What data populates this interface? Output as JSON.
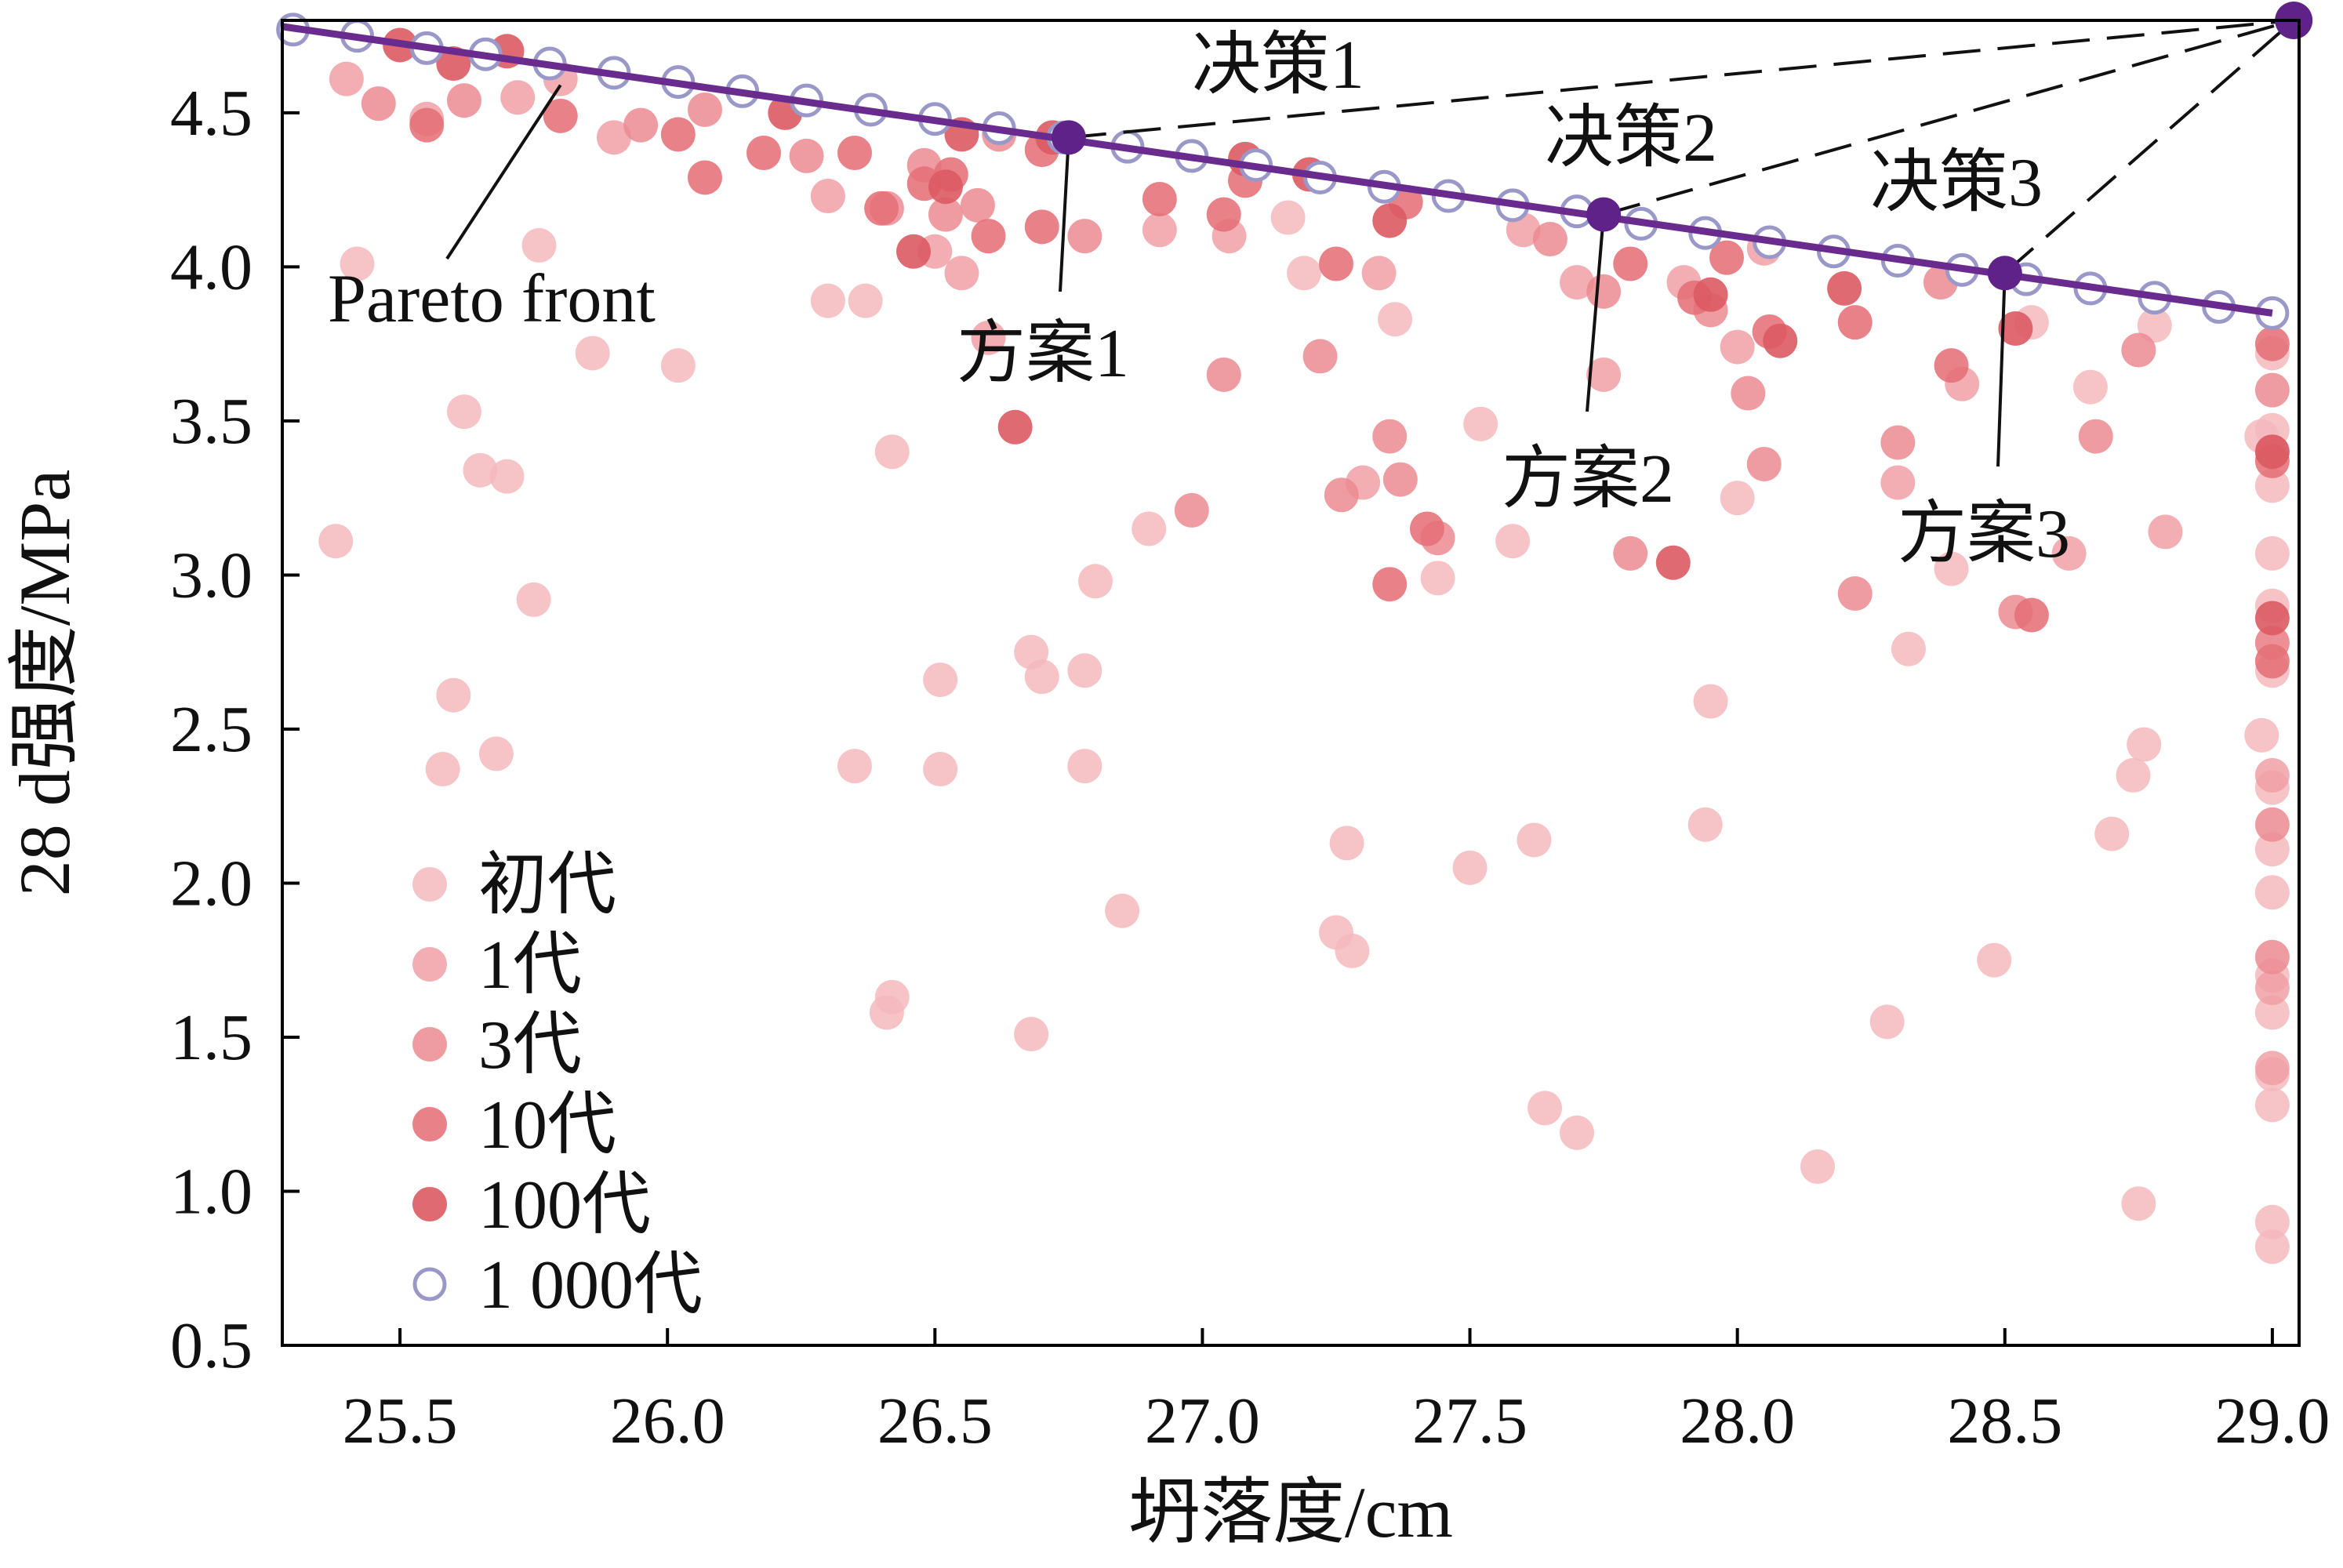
{
  "chart_data": {
    "type": "scatter",
    "xlabel": "坍落度/cm",
    "ylabel": "28 d强度/MPa",
    "xlim": [
      25.28,
      29.05
    ],
    "ylim": [
      0.5,
      4.8
    ],
    "xticks": [
      "25.5",
      "26.0",
      "26.5",
      "27.0",
      "27.5",
      "28.0",
      "28.5",
      "29.0"
    ],
    "yticks": [
      "0.5",
      "1.0",
      "1.5",
      "2.0",
      "2.5",
      "3.0",
      "3.5",
      "4.0",
      "4.5"
    ],
    "grid": false,
    "legend_position": "bottom-left",
    "pareto_label": "Pareto front",
    "pareto_line": [
      [
        25.28,
        4.78
      ],
      [
        29.0,
        3.85
      ]
    ],
    "ideal_point": {
      "x": 29.04,
      "y": 4.8
    },
    "solutions": [
      {
        "label": "方案1",
        "x": 26.75,
        "y": 4.42
      },
      {
        "label": "方案2",
        "x": 27.75,
        "y": 4.17
      },
      {
        "label": "方案3",
        "x": 28.5,
        "y": 3.98
      }
    ],
    "decisions": [
      "决策1",
      "决策2",
      "决策3"
    ],
    "colors": {
      "pareto_line": "#6a2b8e",
      "pareto_marker_stroke": "#9a98c8",
      "solution_point": "#5e2288",
      "decision_line": "#111111"
    },
    "series": [
      {
        "name": "初代",
        "color": "#f5b9bd",
        "opacity": 0.85,
        "points": [
          [
            25.38,
            3.11
          ],
          [
            25.42,
            4.01
          ],
          [
            25.6,
            2.61
          ],
          [
            25.62,
            3.53
          ],
          [
            25.65,
            3.34
          ],
          [
            25.58,
            2.37
          ],
          [
            25.68,
            2.42
          ],
          [
            25.7,
            3.32
          ],
          [
            25.75,
            2.92
          ],
          [
            25.76,
            4.07
          ],
          [
            25.86,
            3.72
          ],
          [
            26.02,
            3.68
          ],
          [
            26.3,
            3.89
          ],
          [
            26.37,
            3.89
          ],
          [
            26.35,
            2.38
          ],
          [
            26.42,
            3.4
          ],
          [
            26.42,
            1.63
          ],
          [
            26.41,
            1.58
          ],
          [
            26.51,
            2.66
          ],
          [
            26.51,
            2.37
          ],
          [
            26.68,
            2.75
          ],
          [
            26.7,
            2.67
          ],
          [
            26.68,
            1.51
          ],
          [
            26.78,
            2.69
          ],
          [
            26.78,
            2.38
          ],
          [
            26.8,
            2.98
          ],
          [
            26.85,
            1.91
          ],
          [
            26.9,
            3.15
          ],
          [
            27.16,
            4.16
          ],
          [
            27.19,
            3.98
          ],
          [
            27.27,
            2.13
          ],
          [
            27.25,
            1.84
          ],
          [
            27.28,
            1.78
          ],
          [
            27.36,
            3.83
          ],
          [
            27.44,
            2.99
          ],
          [
            27.5,
            2.05
          ],
          [
            27.52,
            3.49
          ],
          [
            27.58,
            3.11
          ],
          [
            27.62,
            2.14
          ],
          [
            27.64,
            1.27
          ],
          [
            27.7,
            1.19
          ],
          [
            27.95,
            2.59
          ],
          [
            27.94,
            2.19
          ],
          [
            28.0,
            3.25
          ],
          [
            28.15,
            1.08
          ],
          [
            28.28,
            1.55
          ],
          [
            28.32,
            2.76
          ],
          [
            28.4,
            3.02
          ],
          [
            28.48,
            1.75
          ],
          [
            28.55,
            3.82
          ],
          [
            28.66,
            3.61
          ],
          [
            28.7,
            2.16
          ],
          [
            28.74,
            2.35
          ],
          [
            28.76,
            2.45
          ],
          [
            28.78,
            3.81
          ],
          [
            28.75,
            0.96
          ],
          [
            28.98,
            3.45
          ],
          [
            28.98,
            2.48
          ],
          [
            29.0,
            0.9
          ],
          [
            29.0,
            0.82
          ],
          [
            29.0,
            1.28
          ],
          [
            29.0,
            1.38
          ],
          [
            29.0,
            1.58
          ],
          [
            29.0,
            1.7
          ],
          [
            29.0,
            1.97
          ],
          [
            29.0,
            2.11
          ],
          [
            29.0,
            2.31
          ],
          [
            29.0,
            2.69
          ],
          [
            29.0,
            2.9
          ],
          [
            29.0,
            3.07
          ],
          [
            29.0,
            3.29
          ],
          [
            29.0,
            3.47
          ],
          [
            29.0,
            3.72
          ]
        ]
      },
      {
        "name": "1代",
        "color": "#f0a0a6",
        "opacity": 0.85,
        "points": [
          [
            25.4,
            4.61
          ],
          [
            25.55,
            4.48
          ],
          [
            25.72,
            4.55
          ],
          [
            25.8,
            4.61
          ],
          [
            25.9,
            4.42
          ],
          [
            26.3,
            4.23
          ],
          [
            26.5,
            4.05
          ],
          [
            26.55,
            3.98
          ],
          [
            26.6,
            3.77
          ],
          [
            26.92,
            4.12
          ],
          [
            27.05,
            4.1
          ],
          [
            27.3,
            3.3
          ],
          [
            27.33,
            3.98
          ],
          [
            27.6,
            4.12
          ],
          [
            27.7,
            3.95
          ],
          [
            27.75,
            3.65
          ],
          [
            27.9,
            3.95
          ],
          [
            28.0,
            3.74
          ],
          [
            28.05,
            4.06
          ],
          [
            28.3,
            3.3
          ],
          [
            28.42,
            3.62
          ],
          [
            28.62,
            3.07
          ],
          [
            28.8,
            3.14
          ],
          [
            29.0,
            1.4
          ],
          [
            29.0,
            1.66
          ],
          [
            29.0,
            2.35
          ],
          [
            29.0,
            2.78
          ],
          [
            29.0,
            3.4
          ]
        ]
      },
      {
        "name": "3代",
        "color": "#eb8b91",
        "opacity": 0.85,
        "points": [
          [
            25.46,
            4.53
          ],
          [
            25.62,
            4.54
          ],
          [
            25.95,
            4.46
          ],
          [
            26.07,
            4.51
          ],
          [
            26.26,
            4.36
          ],
          [
            26.41,
            4.19
          ],
          [
            26.48,
            4.33
          ],
          [
            26.52,
            4.17
          ],
          [
            26.58,
            4.2
          ],
          [
            26.62,
            4.43
          ],
          [
            26.78,
            4.1
          ],
          [
            26.98,
            3.21
          ],
          [
            27.04,
            3.65
          ],
          [
            27.22,
            3.71
          ],
          [
            27.26,
            3.26
          ],
          [
            27.35,
            3.45
          ],
          [
            27.37,
            3.31
          ],
          [
            27.44,
            3.12
          ],
          [
            27.65,
            4.09
          ],
          [
            27.75,
            3.92
          ],
          [
            27.8,
            3.07
          ],
          [
            27.95,
            3.86
          ],
          [
            28.02,
            3.59
          ],
          [
            28.05,
            3.36
          ],
          [
            28.22,
            2.94
          ],
          [
            28.3,
            3.43
          ],
          [
            28.38,
            3.95
          ],
          [
            28.52,
            2.88
          ],
          [
            28.67,
            3.45
          ],
          [
            28.75,
            3.73
          ],
          [
            29.0,
            1.76
          ],
          [
            29.0,
            2.19
          ],
          [
            29.0,
            2.78
          ],
          [
            29.0,
            3.6
          ]
        ]
      },
      {
        "name": "10代",
        "color": "#e56f77",
        "opacity": 0.88,
        "points": [
          [
            25.55,
            4.46
          ],
          [
            25.8,
            4.49
          ],
          [
            26.02,
            4.43
          ],
          [
            26.07,
            4.29
          ],
          [
            26.18,
            4.37
          ],
          [
            26.35,
            4.37
          ],
          [
            26.4,
            4.19
          ],
          [
            26.48,
            4.27
          ],
          [
            26.53,
            4.3
          ],
          [
            26.6,
            4.1
          ],
          [
            26.7,
            4.38
          ],
          [
            26.7,
            4.13
          ],
          [
            26.92,
            4.22
          ],
          [
            27.04,
            4.17
          ],
          [
            27.08,
            4.28
          ],
          [
            27.25,
            4.01
          ],
          [
            27.35,
            2.97
          ],
          [
            27.38,
            4.21
          ],
          [
            27.42,
            3.15
          ],
          [
            27.8,
            4.01
          ],
          [
            27.92,
            3.9
          ],
          [
            27.98,
            4.03
          ],
          [
            28.06,
            3.79
          ],
          [
            28.22,
            3.82
          ],
          [
            28.4,
            3.68
          ],
          [
            28.55,
            2.87
          ],
          [
            29.0,
            2.72
          ],
          [
            29.0,
            3.37
          ],
          [
            29.0,
            3.75
          ]
        ]
      },
      {
        "name": "100代",
        "color": "#dc5a63",
        "opacity": 0.9,
        "points": [
          [
            25.5,
            4.72
          ],
          [
            25.6,
            4.66
          ],
          [
            25.7,
            4.7
          ],
          [
            26.22,
            4.5
          ],
          [
            26.46,
            4.05
          ],
          [
            26.52,
            4.26
          ],
          [
            26.55,
            4.43
          ],
          [
            26.65,
            3.48
          ],
          [
            26.72,
            4.42
          ],
          [
            27.08,
            4.35
          ],
          [
            27.2,
            4.3
          ],
          [
            27.35,
            4.15
          ],
          [
            27.88,
            3.04
          ],
          [
            27.95,
            3.91
          ],
          [
            28.08,
            3.76
          ],
          [
            28.2,
            3.93
          ],
          [
            28.52,
            3.8
          ],
          [
            29.0,
            2.86
          ],
          [
            29.0,
            3.4
          ]
        ]
      },
      {
        "name": "1 000代",
        "color": "#9a98c8",
        "opacity": 1.0,
        "marker": "ring",
        "points": [
          [
            25.3,
            4.77
          ],
          [
            25.42,
            4.75
          ],
          [
            25.55,
            4.71
          ],
          [
            25.66,
            4.69
          ],
          [
            25.78,
            4.66
          ],
          [
            25.9,
            4.63
          ],
          [
            26.02,
            4.6
          ],
          [
            26.14,
            4.57
          ],
          [
            26.26,
            4.54
          ],
          [
            26.38,
            4.51
          ],
          [
            26.5,
            4.48
          ],
          [
            26.62,
            4.45
          ],
          [
            26.74,
            4.42
          ],
          [
            26.86,
            4.39
          ],
          [
            26.98,
            4.36
          ],
          [
            27.1,
            4.33
          ],
          [
            27.22,
            4.29
          ],
          [
            27.34,
            4.26
          ],
          [
            27.46,
            4.23
          ],
          [
            27.58,
            4.2
          ],
          [
            27.7,
            4.18
          ],
          [
            27.82,
            4.14
          ],
          [
            27.94,
            4.11
          ],
          [
            28.06,
            4.08
          ],
          [
            28.18,
            4.05
          ],
          [
            28.3,
            4.02
          ],
          [
            28.42,
            3.99
          ],
          [
            28.54,
            3.96
          ],
          [
            28.66,
            3.93
          ],
          [
            28.78,
            3.9
          ],
          [
            28.9,
            3.87
          ],
          [
            29.0,
            3.85
          ]
        ]
      }
    ]
  }
}
